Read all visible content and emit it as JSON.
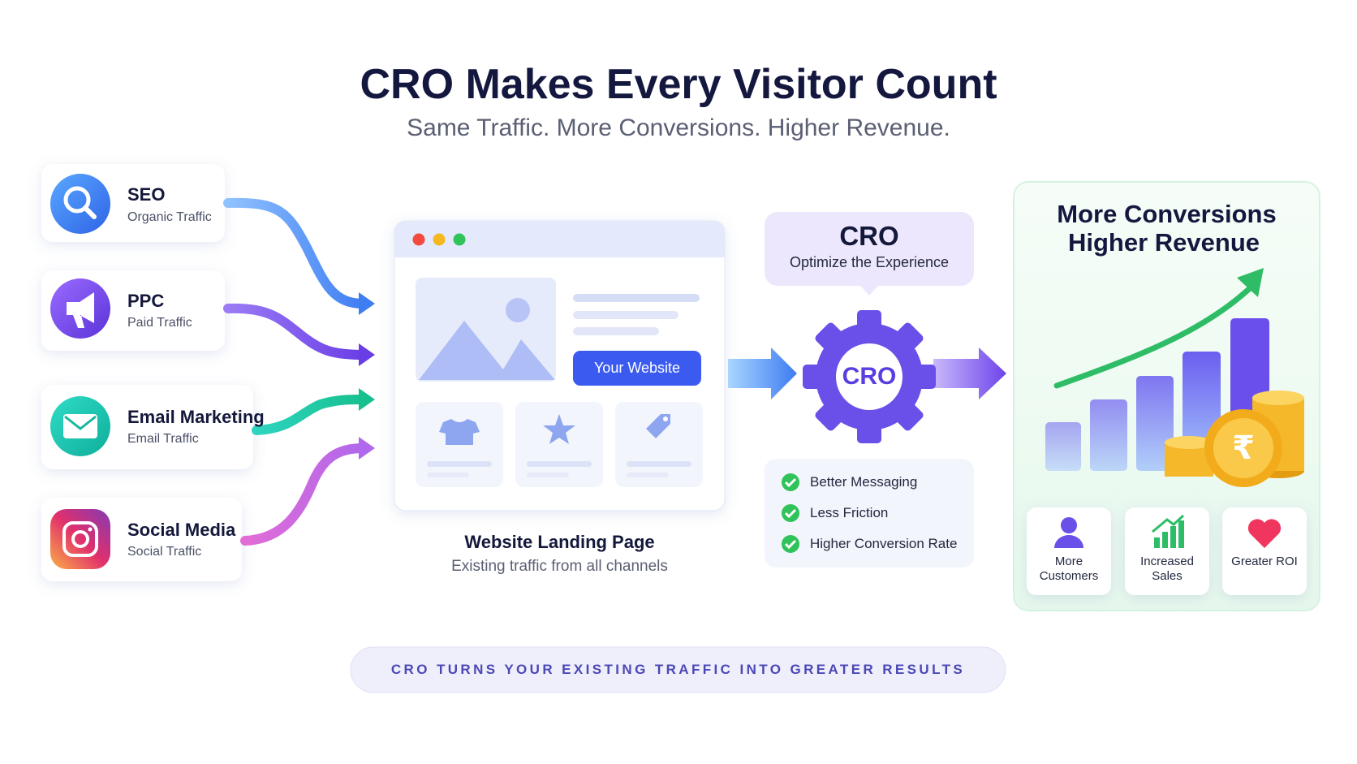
{
  "header": {
    "title": "CRO Makes Every Visitor Count",
    "subtitle": "Same Traffic. More Conversions. Higher Revenue."
  },
  "sources": [
    {
      "label": "SEO",
      "sublabel": "Organic Traffic"
    },
    {
      "label": "PPC",
      "sublabel": "Paid Traffic"
    },
    {
      "label": "Email Marketing",
      "sublabel": "Email Traffic"
    },
    {
      "label": "Social Media",
      "sublabel": "Social Traffic"
    }
  ],
  "website": {
    "button": "Your Website",
    "title": "Website Landing Page",
    "subtitle": "Existing traffic from all channels"
  },
  "cro": {
    "title": "CRO",
    "subtitle": "Optimize the Experience",
    "gear_label": "CRO",
    "benefits": [
      "Better Messaging",
      "Less Friction",
      "Higher Conversion Rate"
    ]
  },
  "results": {
    "title": [
      "More Conversions",
      "Higher Revenue"
    ],
    "stats": [
      "More Customers",
      "Increased Sales",
      "Greater ROI"
    ]
  },
  "footer": {
    "banner": "CRO TURNS YOUR EXISTING TRAFFIC INTO GREATER RESULTS"
  }
}
